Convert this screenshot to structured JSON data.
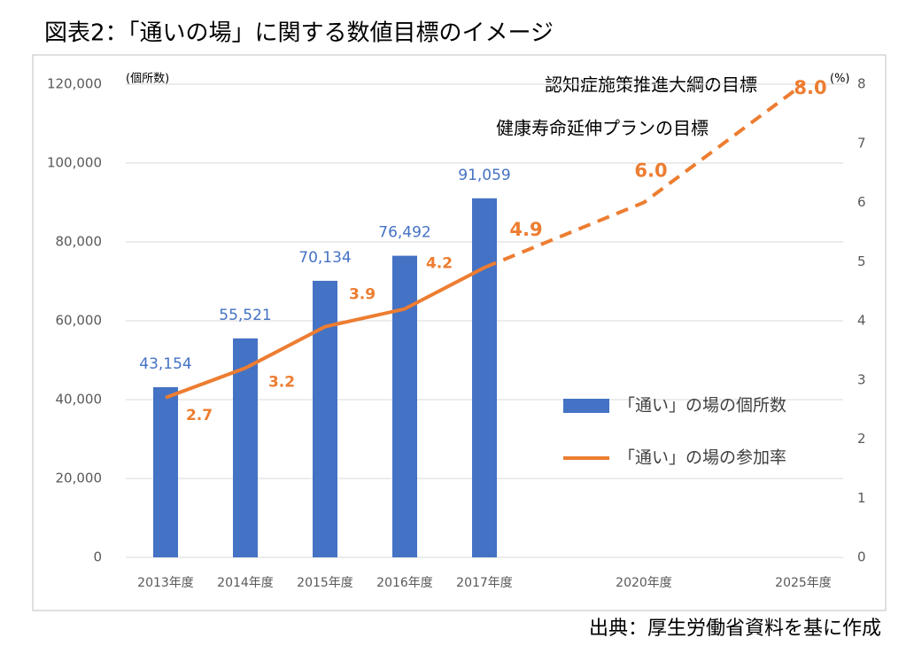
{
  "title": "図表2：「通いの場」に関する数値目標のイメージ",
  "source": "出典：厚生労働省資料を基に作成",
  "chart_data": {
    "type": "bar",
    "categories": [
      "2013年度",
      "2014年度",
      "2015年度",
      "2016年度",
      "2017年度",
      "2020年度",
      "2025年度"
    ],
    "y_label": "(個所数)",
    "y2_label": "(%)",
    "ylim": [
      0,
      120000
    ],
    "yticks": [
      0,
      {
        "value": 20000,
        "label": "20,000"
      },
      {
        "value": 40000,
        "label": "40,000"
      },
      {
        "value": 60000,
        "label": "60,000"
      },
      {
        "value": 80000,
        "label": "80,000"
      },
      {
        "value": 100000,
        "label": "100,000"
      },
      {
        "value": 120000,
        "label": "120,000"
      }
    ],
    "y2lim": [
      0,
      8
    ],
    "y2ticks": [
      0,
      1,
      2,
      3,
      4,
      5,
      6,
      7,
      8
    ],
    "grid": true,
    "series": [
      {
        "name": "「通い」の場の個所数",
        "type": "bar",
        "color": "#4472c4",
        "values": [
          43154,
          55521,
          70134,
          76492,
          91059,
          null,
          null
        ],
        "value_labels": [
          "43,154",
          "55,521",
          "70,134",
          "76,492",
          "91,059",
          null,
          null
        ]
      },
      {
        "name": "「通い」の場の参加率",
        "type": "line",
        "axis": "y2",
        "color": "#ed7d31",
        "values": [
          2.7,
          3.2,
          3.9,
          4.2,
          4.9,
          6.0,
          8.0
        ],
        "value_labels": [
          "2.7",
          "3.2",
          "3.9",
          "4.2",
          "4.9",
          "6.0",
          "8.0"
        ]
      }
    ],
    "annotations": [
      "認知症施策推進大綱の目標",
      "健康寿命延伸プランの目標"
    ]
  }
}
